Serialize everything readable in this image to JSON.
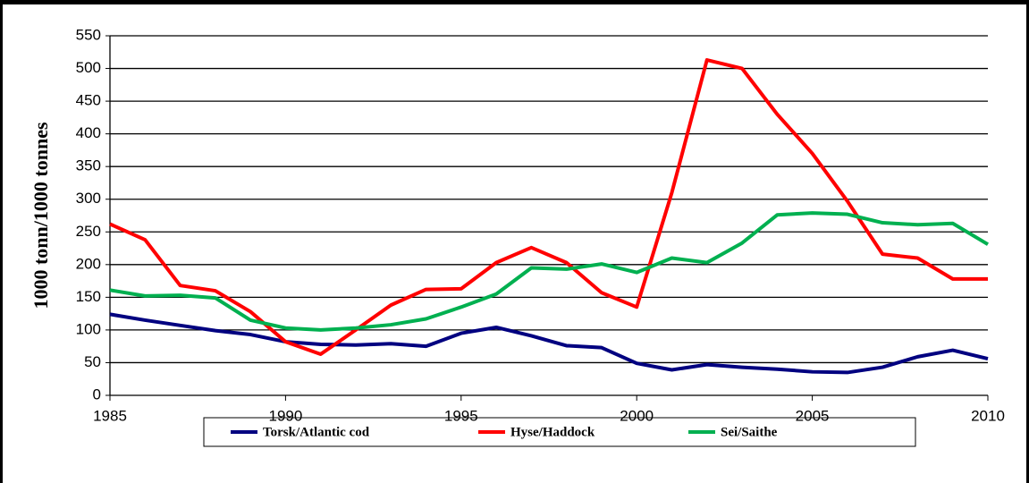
{
  "chart_data": {
    "type": "line",
    "y_label": "1000 tonn/1000 tonnes",
    "x": [
      1985,
      1986,
      1987,
      1988,
      1989,
      1990,
      1991,
      1992,
      1993,
      1994,
      1995,
      1996,
      1997,
      1998,
      1999,
      2000,
      2001,
      2002,
      2003,
      2004,
      2005,
      2006,
      2007,
      2008,
      2009,
      2010
    ],
    "series": [
      {
        "name": "Torsk/Atlantic cod",
        "color": "#000080",
        "values": [
          124,
          115,
          107,
          99,
          93,
          82,
          78,
          77,
          79,
          75,
          95,
          104,
          91,
          76,
          73,
          49,
          39,
          47,
          43,
          40,
          36,
          35,
          43,
          59,
          69,
          56
        ]
      },
      {
        "name": "Hyse/Haddock",
        "color": "#ff0000",
        "values": [
          262,
          238,
          168,
          160,
          128,
          82,
          63,
          100,
          138,
          162,
          163,
          203,
          226,
          203,
          157,
          135,
          310,
          513,
          500,
          430,
          370,
          297,
          216,
          210,
          178,
          178
        ]
      },
      {
        "name": "Sei/Saithe",
        "color": "#00b050",
        "values": [
          161,
          152,
          153,
          149,
          115,
          103,
          100,
          103,
          108,
          117,
          135,
          155,
          195,
          193,
          201,
          188,
          210,
          203,
          233,
          276,
          279,
          277,
          264,
          261,
          263,
          231
        ]
      }
    ],
    "xlim": [
      1985,
      2010
    ],
    "xticks": [
      1985,
      1990,
      1995,
      2000,
      2005,
      2010
    ],
    "ylim": [
      0,
      550
    ],
    "yticks": [
      0,
      50,
      100,
      150,
      200,
      250,
      300,
      350,
      400,
      450,
      500,
      550
    ],
    "grid": true
  }
}
